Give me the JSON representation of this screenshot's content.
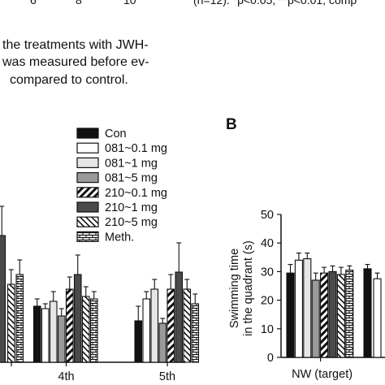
{
  "top_fragments": {
    "tick_a": "6",
    "tick_b": "8",
    "tick_c": "10",
    "stats_note": "(n=12). *p<0.05, **p<0.01, comp"
  },
  "caption_lines": [
    "the treatments with JWH-",
    "was measured before ev-",
    "compared to control."
  ],
  "panel_b_label": "B",
  "legend": [
    {
      "label": "Con",
      "pattern": "solid-black"
    },
    {
      "label": "081~0.1 mg",
      "pattern": "white"
    },
    {
      "label": "081~1 mg",
      "pattern": "light-gray"
    },
    {
      "label": "081~5 mg",
      "pattern": "gray"
    },
    {
      "label": "210~0.1 mg",
      "pattern": "diagonal-thick"
    },
    {
      "label": "210~1 mg",
      "pattern": "dark-gray"
    },
    {
      "label": "210~5 mg",
      "pattern": "diagonal-thin"
    },
    {
      "label": "Meth.",
      "pattern": "brick"
    }
  ],
  "colors": {
    "black": "#111111",
    "white": "#ffffff",
    "light_gray": "#e6e6e6",
    "gray": "#9a9a9a",
    "dark_gray": "#4a4a4a"
  },
  "chart_data": [
    {
      "type": "bar",
      "panel": "A",
      "categories": [
        "4th",
        "5th"
      ],
      "series": [
        {
          "name": "Con",
          "values": [
            11.5,
            8.5
          ],
          "errors": [
            1.5,
            3.0
          ]
        },
        {
          "name": "081~0.1 mg",
          "values": [
            11.0,
            13.0
          ],
          "errors": [
            1.0,
            1.5
          ]
        },
        {
          "name": "081~1 mg",
          "values": [
            12.5,
            15.0
          ],
          "errors": [
            2.0,
            2.0
          ]
        },
        {
          "name": "081~5 mg",
          "values": [
            9.5,
            8.0
          ],
          "errors": [
            1.5,
            1.0
          ]
        },
        {
          "name": "210~0.1 mg",
          "values": [
            15.0,
            15.0
          ],
          "errors": [
            2.5,
            3.0
          ]
        },
        {
          "name": "210~1 mg",
          "values": [
            18.0,
            18.5
          ],
          "errors": [
            4.0,
            6.0
          ]
        },
        {
          "name": "210~5 mg",
          "values": [
            13.5,
            15.0
          ],
          "errors": [
            2.0,
            2.0
          ]
        },
        {
          "name": "Meth.",
          "values": [
            13.0,
            12.0
          ],
          "errors": [
            1.5,
            2.0
          ]
        }
      ],
      "partial_visible": [
        {
          "name": "210~1 mg",
          "value": 26.0,
          "error": 6.0
        },
        {
          "name": "210~5 mg",
          "value": 16.0,
          "error": 3.0
        },
        {
          "name": "Meth.",
          "value": 18.0,
          "error": 3.0
        }
      ],
      "ylim": [
        0,
        40
      ],
      "xtick_labels": [
        "4th",
        "5th"
      ]
    },
    {
      "type": "bar",
      "panel": "B",
      "ylabel_lines": [
        "Swimming time",
        "in the quadrant (s)"
      ],
      "yticks": [
        0,
        10,
        20,
        30,
        40,
        50
      ],
      "ylim": [
        0,
        50
      ],
      "categories": [
        "NW (target)"
      ],
      "series": [
        {
          "name": "Con",
          "values": [
            29.5
          ],
          "errors": [
            3.0
          ]
        },
        {
          "name": "081~0.1 mg",
          "values": [
            34.0
          ],
          "errors": [
            2.5
          ]
        },
        {
          "name": "081~1 mg",
          "values": [
            34.5
          ],
          "errors": [
            2.0
          ]
        },
        {
          "name": "081~5 mg",
          "values": [
            27.0
          ],
          "errors": [
            2.5
          ]
        },
        {
          "name": "210~0.1 mg",
          "values": [
            29.5
          ],
          "errors": [
            2.0
          ]
        },
        {
          "name": "210~1 mg",
          "values": [
            30.0
          ],
          "errors": [
            2.0
          ]
        },
        {
          "name": "210~5 mg",
          "values": [
            29.0
          ],
          "errors": [
            2.5
          ]
        },
        {
          "name": "Meth.",
          "values": [
            30.5
          ],
          "errors": [
            1.5
          ]
        }
      ],
      "next_group_partial": [
        {
          "name": "Con",
          "value": 31.0,
          "error": 1.5
        },
        {
          "name": "081~0.1 mg",
          "value": 27.5,
          "error": 2.0
        }
      ],
      "xtick_labels": [
        "NW (target)"
      ]
    }
  ]
}
